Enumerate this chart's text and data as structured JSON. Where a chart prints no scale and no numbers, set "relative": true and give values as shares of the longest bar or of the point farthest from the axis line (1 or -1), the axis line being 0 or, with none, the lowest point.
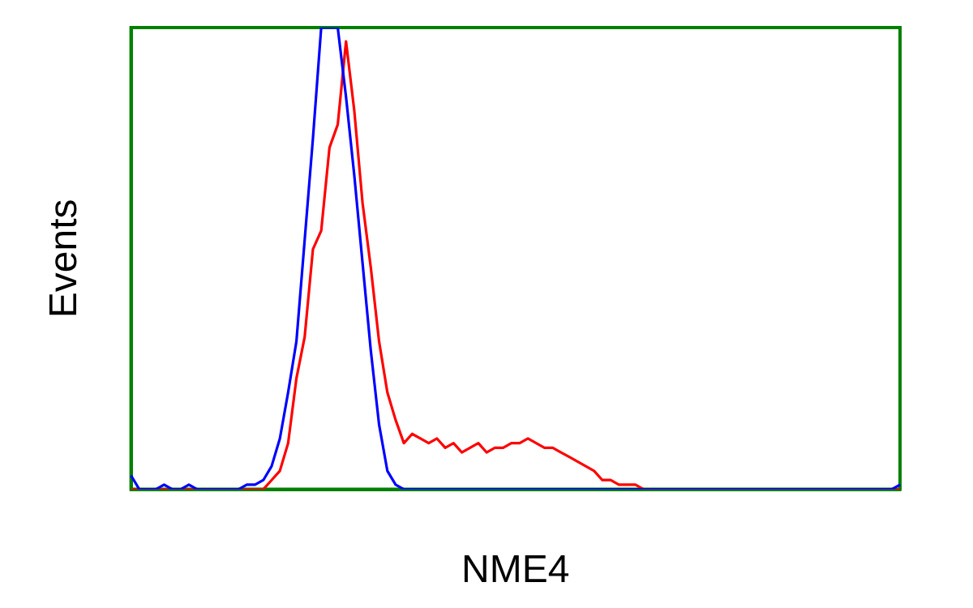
{
  "chart_data": {
    "type": "line",
    "relative": true,
    "xlabel": "NME4",
    "ylabel": "Events",
    "legend": false,
    "grid": false,
    "marker": "none",
    "categories": [
      null,
      null,
      null,
      null,
      null,
      null,
      null,
      null,
      null,
      null,
      null,
      null,
      null,
      null,
      null,
      null,
      null,
      null,
      null,
      null,
      null,
      null,
      null,
      null,
      null,
      null,
      null,
      null,
      null,
      null,
      null,
      null,
      null,
      null,
      null,
      null,
      null,
      null,
      null,
      null,
      null,
      null,
      null,
      null,
      null,
      null,
      null,
      null,
      null,
      null,
      null,
      null,
      null,
      null,
      null,
      null,
      null,
      null,
      null,
      null,
      null,
      null,
      null,
      null,
      null,
      null,
      null,
      null,
      null,
      null,
      null,
      null,
      null,
      null,
      null,
      null,
      null,
      null,
      null,
      null,
      null,
      null,
      null,
      null,
      null,
      null,
      null,
      null,
      null,
      null,
      null,
      null,
      null,
      null
    ],
    "series": [
      {
        "color": "#0000ff",
        "values": [
          0.03,
          0,
          0,
          0,
          0.01,
          0,
          0,
          0.01,
          0,
          0,
          0,
          0,
          0,
          0,
          0.01,
          0.01,
          0.02,
          0.05,
          0.11,
          0.21,
          0.32,
          0.54,
          0.76,
          1,
          1,
          1,
          0.85,
          0.68,
          0.49,
          0.3,
          0.14,
          0.04,
          0.01,
          0,
          0,
          0,
          0,
          0,
          0,
          0,
          0,
          0,
          0,
          0,
          0,
          0,
          0,
          0,
          0,
          0,
          0,
          0,
          0,
          0,
          0,
          0,
          0,
          0,
          0,
          0,
          0,
          0,
          0,
          0,
          0,
          0,
          0,
          0,
          0,
          0,
          0,
          0,
          0,
          0,
          0,
          0,
          0,
          0,
          0,
          0,
          0,
          0,
          0,
          0,
          0,
          0,
          0,
          0,
          0,
          0,
          0,
          0,
          0,
          0.01
        ]
      },
      {
        "color": "#ff0000",
        "values": [
          0,
          0,
          0,
          0,
          0,
          0,
          0,
          0,
          0,
          0,
          0,
          0,
          0,
          0,
          0,
          0,
          0,
          0.02,
          0.04,
          0.1,
          0.24,
          0.33,
          0.52,
          0.56,
          0.74,
          0.79,
          0.97,
          0.82,
          0.62,
          0.48,
          0.32,
          0.21,
          0.15,
          0.1,
          0.12,
          0.11,
          0.1,
          0.11,
          0.09,
          0.1,
          0.08,
          0.09,
          0.1,
          0.08,
          0.09,
          0.09,
          0.1,
          0.1,
          0.11,
          0.1,
          0.09,
          0.09,
          0.08,
          0.07,
          0.06,
          0.05,
          0.04,
          0.02,
          0.02,
          0.01,
          0.01,
          0.01,
          0,
          0,
          0,
          0,
          0,
          0,
          0,
          0,
          0,
          0,
          0,
          0,
          0,
          0,
          0,
          0,
          0,
          0,
          0,
          0,
          0,
          0,
          0,
          0,
          0,
          0,
          0,
          0,
          0,
          0,
          0,
          0
        ]
      }
    ]
  }
}
